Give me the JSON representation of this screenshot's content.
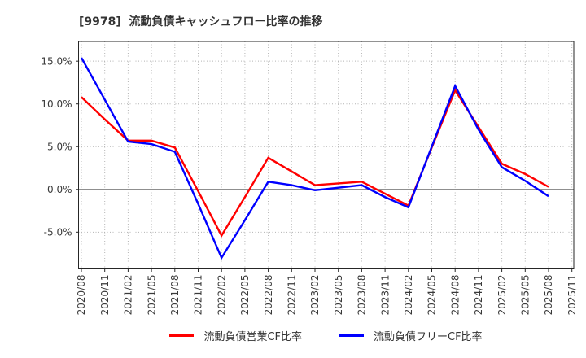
{
  "title": "[9978]  流動負債キャッシュフロー比率の推移",
  "chart_data": {
    "type": "line",
    "title": "[9978] 流動負債キャッシュフロー比率の推移",
    "x_categories": [
      "2020/08",
      "2020/11",
      "2021/02",
      "2021/05",
      "2021/08",
      "2021/11",
      "2022/02",
      "2022/05",
      "2022/08",
      "2022/11",
      "2023/02",
      "2023/05",
      "2023/08",
      "2023/11",
      "2024/02",
      "2024/05",
      "2024/08",
      "2024/11",
      "2025/02",
      "2025/05",
      "2025/08",
      "2025/11"
    ],
    "series": [
      {
        "name": "流動負債営業CF比率",
        "color": "#ff0000",
        "values": [
          10.8,
          8.2,
          5.7,
          5.7,
          4.9,
          -0.2,
          -5.4,
          -0.9,
          3.7,
          2.1,
          0.5,
          0.7,
          0.9,
          -0.5,
          -1.9,
          4.9,
          11.6,
          7.3,
          3.0,
          1.8,
          0.3,
          null
        ]
      },
      {
        "name": "流動負債フリーCF比率",
        "color": "#0000ff",
        "values": [
          15.4,
          10.5,
          5.6,
          5.3,
          4.4,
          -1.7,
          -8.0,
          -3.6,
          0.9,
          0.5,
          -0.1,
          0.2,
          0.5,
          -0.9,
          -2.1,
          5.0,
          12.1,
          7.0,
          2.6,
          1.0,
          -0.8,
          null
        ]
      }
    ],
    "y_ticks": [
      "15.0%",
      "10.0%",
      "5.0%",
      "0.0%",
      "-5.0%"
    ],
    "y_tick_values": [
      15,
      10,
      5,
      0,
      -5
    ],
    "ylim": [
      -9.3,
      17.3
    ],
    "unit": "%",
    "grid": true,
    "zero_line": true,
    "legend_position": "bottom-center",
    "colors": {
      "grid": "#b3b3b3",
      "zero_line": "#7f7f7f",
      "spine": "#262626",
      "tick_label": "#3a3a3a",
      "title": "#333333"
    }
  },
  "legend": {
    "items": [
      {
        "label": "流動負債営業CF比率",
        "color": "#ff0000"
      },
      {
        "label": "流動負債フリーCF比率",
        "color": "#0000ff"
      }
    ]
  }
}
